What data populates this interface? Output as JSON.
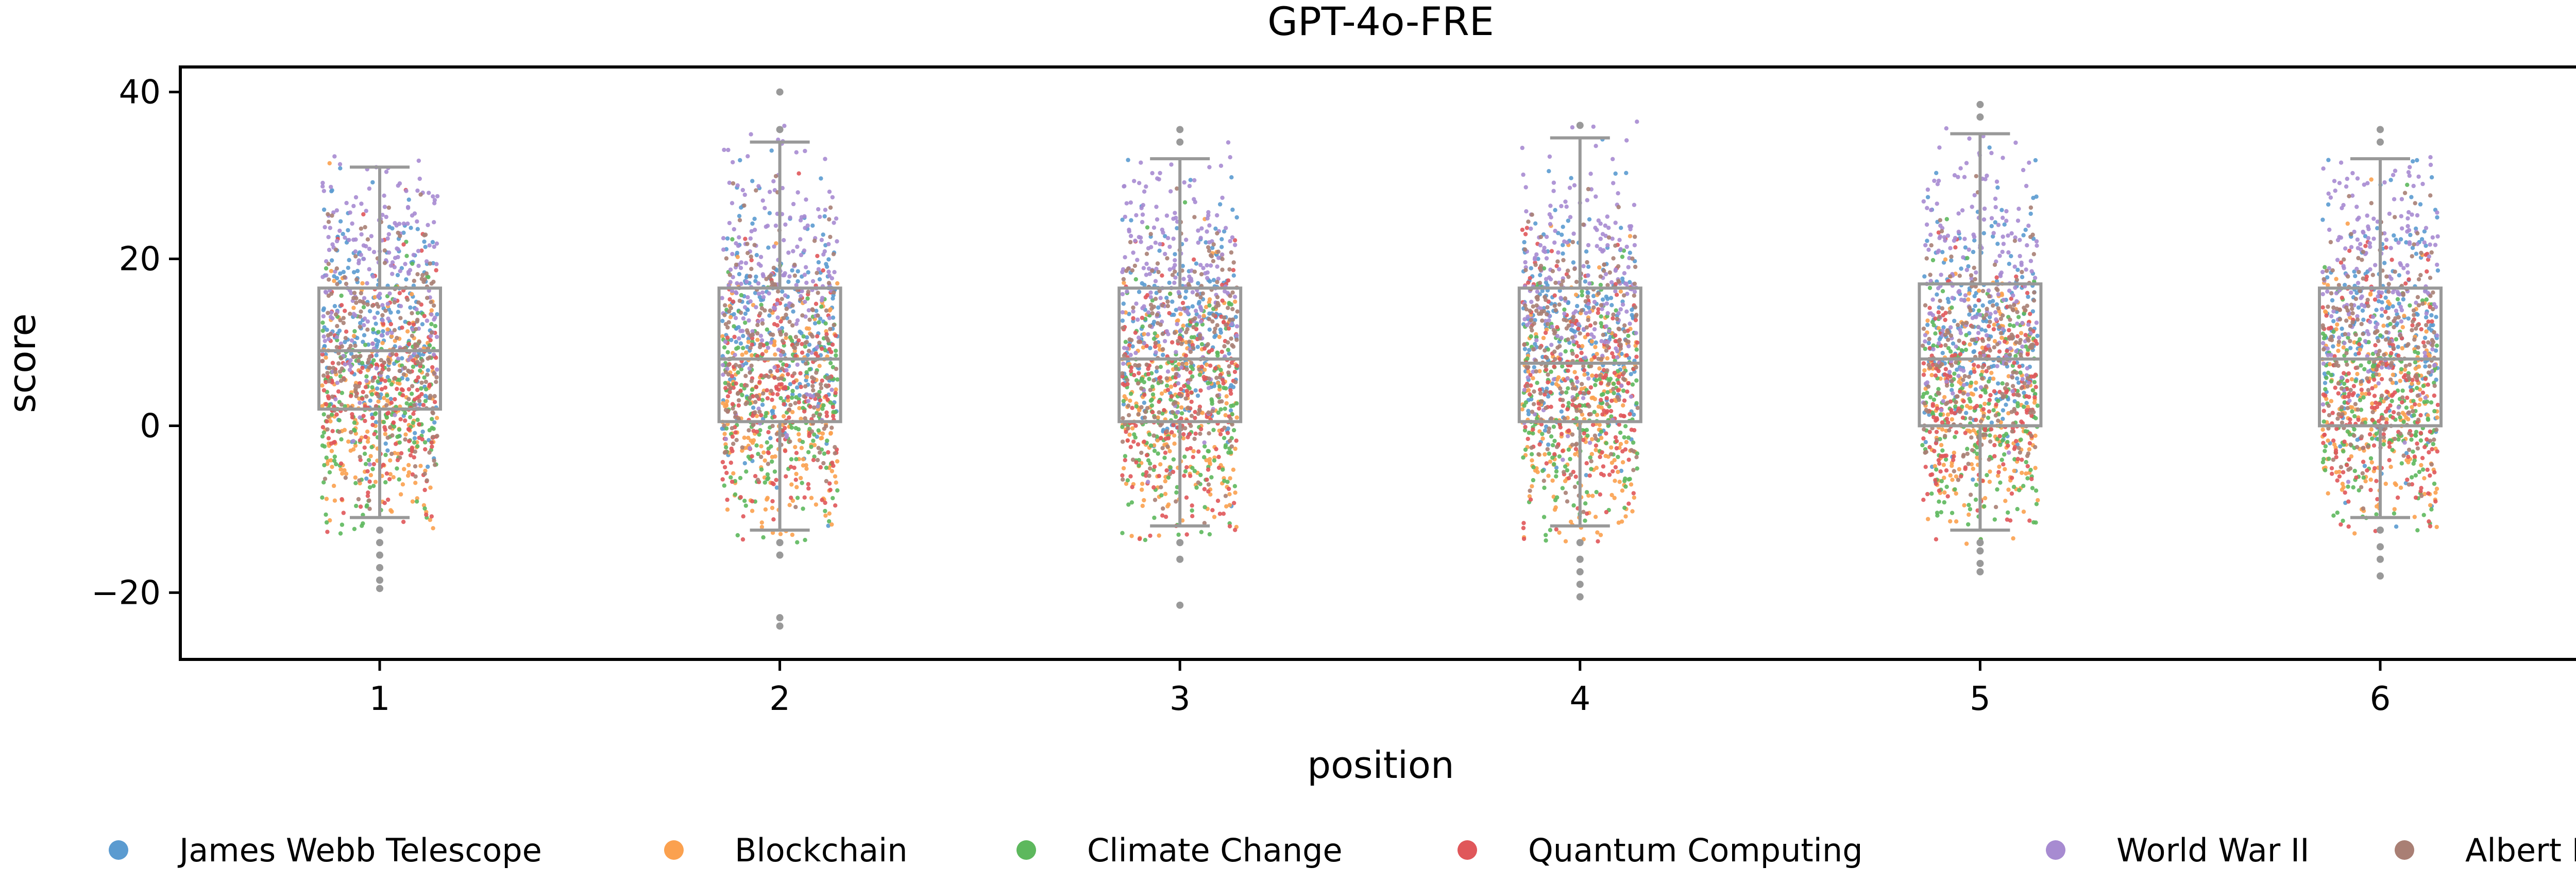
{
  "chart_data": {
    "type": "box-strip",
    "title": "GPT-4o-FRE",
    "xlabel": "position",
    "ylabel": "score",
    "categories": [
      "1",
      "2",
      "3",
      "4",
      "5",
      "6"
    ],
    "ylim": [
      -28,
      43
    ],
    "yticks": [
      {
        "value": -20,
        "label": "−20"
      },
      {
        "value": 0,
        "label": "0"
      },
      {
        "value": 20,
        "label": "20"
      },
      {
        "value": 40,
        "label": "40"
      }
    ],
    "grid": false,
    "legend_position": "bottom",
    "series": [
      {
        "name": "James Webb Telescope",
        "color": "#5b9bd0",
        "mean": 12,
        "sd": 8
      },
      {
        "name": "Blockchain",
        "color": "#fba14f",
        "mean": 1,
        "sd": 8
      },
      {
        "name": "Climate Change",
        "color": "#5db85d",
        "mean": 2,
        "sd": 7.5
      },
      {
        "name": "Quantum Computing",
        "color": "#e0575a",
        "mean": 3,
        "sd": 8
      },
      {
        "name": "World War II",
        "color": "#a78bd1",
        "mean": 18,
        "sd": 8
      },
      {
        "name": "Albert Einstein",
        "color": "#a97f74",
        "mean": 9,
        "sd": 8
      }
    ],
    "boxes": [
      {
        "position": "1",
        "whisker_low": -11,
        "q1": 2,
        "median": 9,
        "q3": 16.5,
        "whisker_high": 31,
        "outliers": [
          -12.5,
          -14,
          -15.5,
          -17,
          -18.5,
          -19.5
        ]
      },
      {
        "position": "2",
        "whisker_low": -12.5,
        "q1": 0.5,
        "median": 8,
        "q3": 16.5,
        "whisker_high": 34,
        "outliers": [
          -14,
          -15.5,
          -23,
          -24,
          35.5,
          40
        ]
      },
      {
        "position": "3",
        "whisker_low": -12,
        "q1": 0.5,
        "median": 8,
        "q3": 16.5,
        "whisker_high": 32,
        "outliers": [
          -14,
          -16,
          -21.5,
          34,
          35.5
        ]
      },
      {
        "position": "4",
        "whisker_low": -12,
        "q1": 0.5,
        "median": 7.5,
        "q3": 16.5,
        "whisker_high": 34.5,
        "outliers": [
          -14,
          -16,
          -17.5,
          -19,
          -20.5,
          36
        ]
      },
      {
        "position": "5",
        "whisker_low": -12.5,
        "q1": 0,
        "median": 8,
        "q3": 17,
        "whisker_high": 35,
        "outliers": [
          -14,
          -15,
          -16.5,
          -17.5,
          37,
          38.5
        ]
      },
      {
        "position": "6",
        "whisker_low": -11,
        "q1": 0,
        "median": 8,
        "q3": 16.5,
        "whisker_high": 32,
        "outliers": [
          -12.5,
          -14.5,
          -16,
          -18,
          34,
          35.5
        ]
      }
    ],
    "box_color": "#999999"
  }
}
